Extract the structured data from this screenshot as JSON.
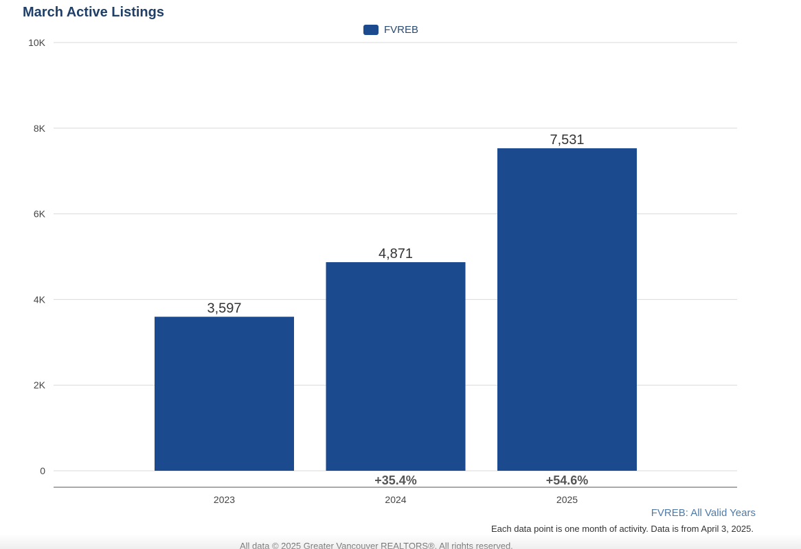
{
  "chart_data": {
    "type": "bar",
    "title": "March Active Listings",
    "categories": [
      "2023",
      "2024",
      "2025"
    ],
    "series": [
      {
        "name": "FVREB",
        "color": "#1b4a8f",
        "values": [
          3597,
          4871,
          7531
        ],
        "value_labels": [
          "3,597",
          "4,871",
          "7,531"
        ],
        "change_labels": [
          "",
          "+35.4%",
          "+54.6%"
        ]
      }
    ],
    "ylim": [
      0,
      10000
    ],
    "yticks": [
      0,
      2000,
      4000,
      6000,
      8000,
      10000
    ],
    "ytick_labels": [
      "0",
      "2K",
      "4K",
      "6K",
      "8K",
      "10K"
    ],
    "xlabel": "",
    "ylabel": "",
    "grid": true,
    "legend_position": "top-center"
  },
  "footer": {
    "source_link": "FVREB: All Valid Years",
    "note": "Each data point is one month of activity. Data is from April 3, 2025.",
    "copyright": "All data © 2025 Greater Vancouver REALTORS®. All rights reserved."
  }
}
